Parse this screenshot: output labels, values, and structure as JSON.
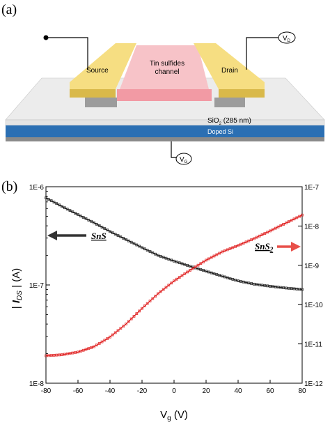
{
  "panel_a": {
    "label": "(a)",
    "channel_line1": "Tin sulfides",
    "channel_line2": "channel",
    "source_label": "Source",
    "drain_label": "Drain",
    "oxide_label": "SiO",
    "oxide_sub": "2",
    "oxide_thickness": " (285 nm)",
    "substrate_label": "Doped Si",
    "vd_label": "V",
    "vd_sub": "D",
    "vg_label": "V",
    "vg_sub": "G",
    "colors": {
      "electrode": "#f2d873",
      "channel": "#f6b7bd",
      "substrate": "#2b6fb3",
      "oxide": "#e9e9e9"
    }
  },
  "panel_b": {
    "label": "(b)"
  },
  "chart_data": {
    "type": "scatter",
    "xlabel_main": "V",
    "xlabel_sub": "g",
    "xlabel_unit": " (V)",
    "ylabel_left": "| I_DS |  (A)",
    "xlim": [
      -80,
      80
    ],
    "x_ticks": [
      "-80",
      "-60",
      "-40",
      "-20",
      "0",
      "20",
      "40",
      "60",
      "80"
    ],
    "y_left": {
      "scale": "log",
      "lim": [
        1e-08,
        1e-06
      ],
      "ticks": [
        "1E-8",
        "1E-7",
        "1E-6"
      ]
    },
    "y_right": {
      "scale": "log",
      "lim": [
        1e-12,
        1e-07
      ],
      "ticks": [
        "1E-12",
        "1E-11",
        "1E-10",
        "1E-9",
        "1E-8",
        "1E-7"
      ]
    },
    "series": [
      {
        "name": "SnS",
        "axis": "left",
        "color": "#1a1a1a",
        "x": [
          -80,
          -70,
          -60,
          -50,
          -40,
          -30,
          -20,
          -10,
          0,
          10,
          20,
          30,
          40,
          50,
          60,
          70,
          80
        ],
        "y": [
          7.7e-07,
          6.3e-07,
          5.2e-07,
          4.3e-07,
          3.5e-07,
          2.9e-07,
          2.4e-07,
          2e-07,
          1.75e-07,
          1.55e-07,
          1.38e-07,
          1.23e-07,
          1.1e-07,
          1.02e-07,
          9.7e-08,
          9.3e-08,
          9e-08
        ]
      },
      {
        "name": "SnS2",
        "axis": "right",
        "color": "#e02020",
        "x": [
          -80,
          -70,
          -60,
          -50,
          -40,
          -30,
          -20,
          -10,
          0,
          10,
          20,
          30,
          40,
          50,
          60,
          70,
          80
        ],
        "y": [
          5e-12,
          5.3e-12,
          6.2e-12,
          8.5e-12,
          1.5e-11,
          3.2e-11,
          8e-11,
          1.9e-10,
          4e-10,
          7.5e-10,
          1.35e-09,
          2.2e-09,
          3.2e-09,
          4.8e-09,
          7.5e-09,
          1.2e-08,
          1.9e-08
        ]
      }
    ],
    "annotations": {
      "sns_main": "SnS",
      "sns2_main": "SnS",
      "sns2_sub": "2"
    }
  }
}
